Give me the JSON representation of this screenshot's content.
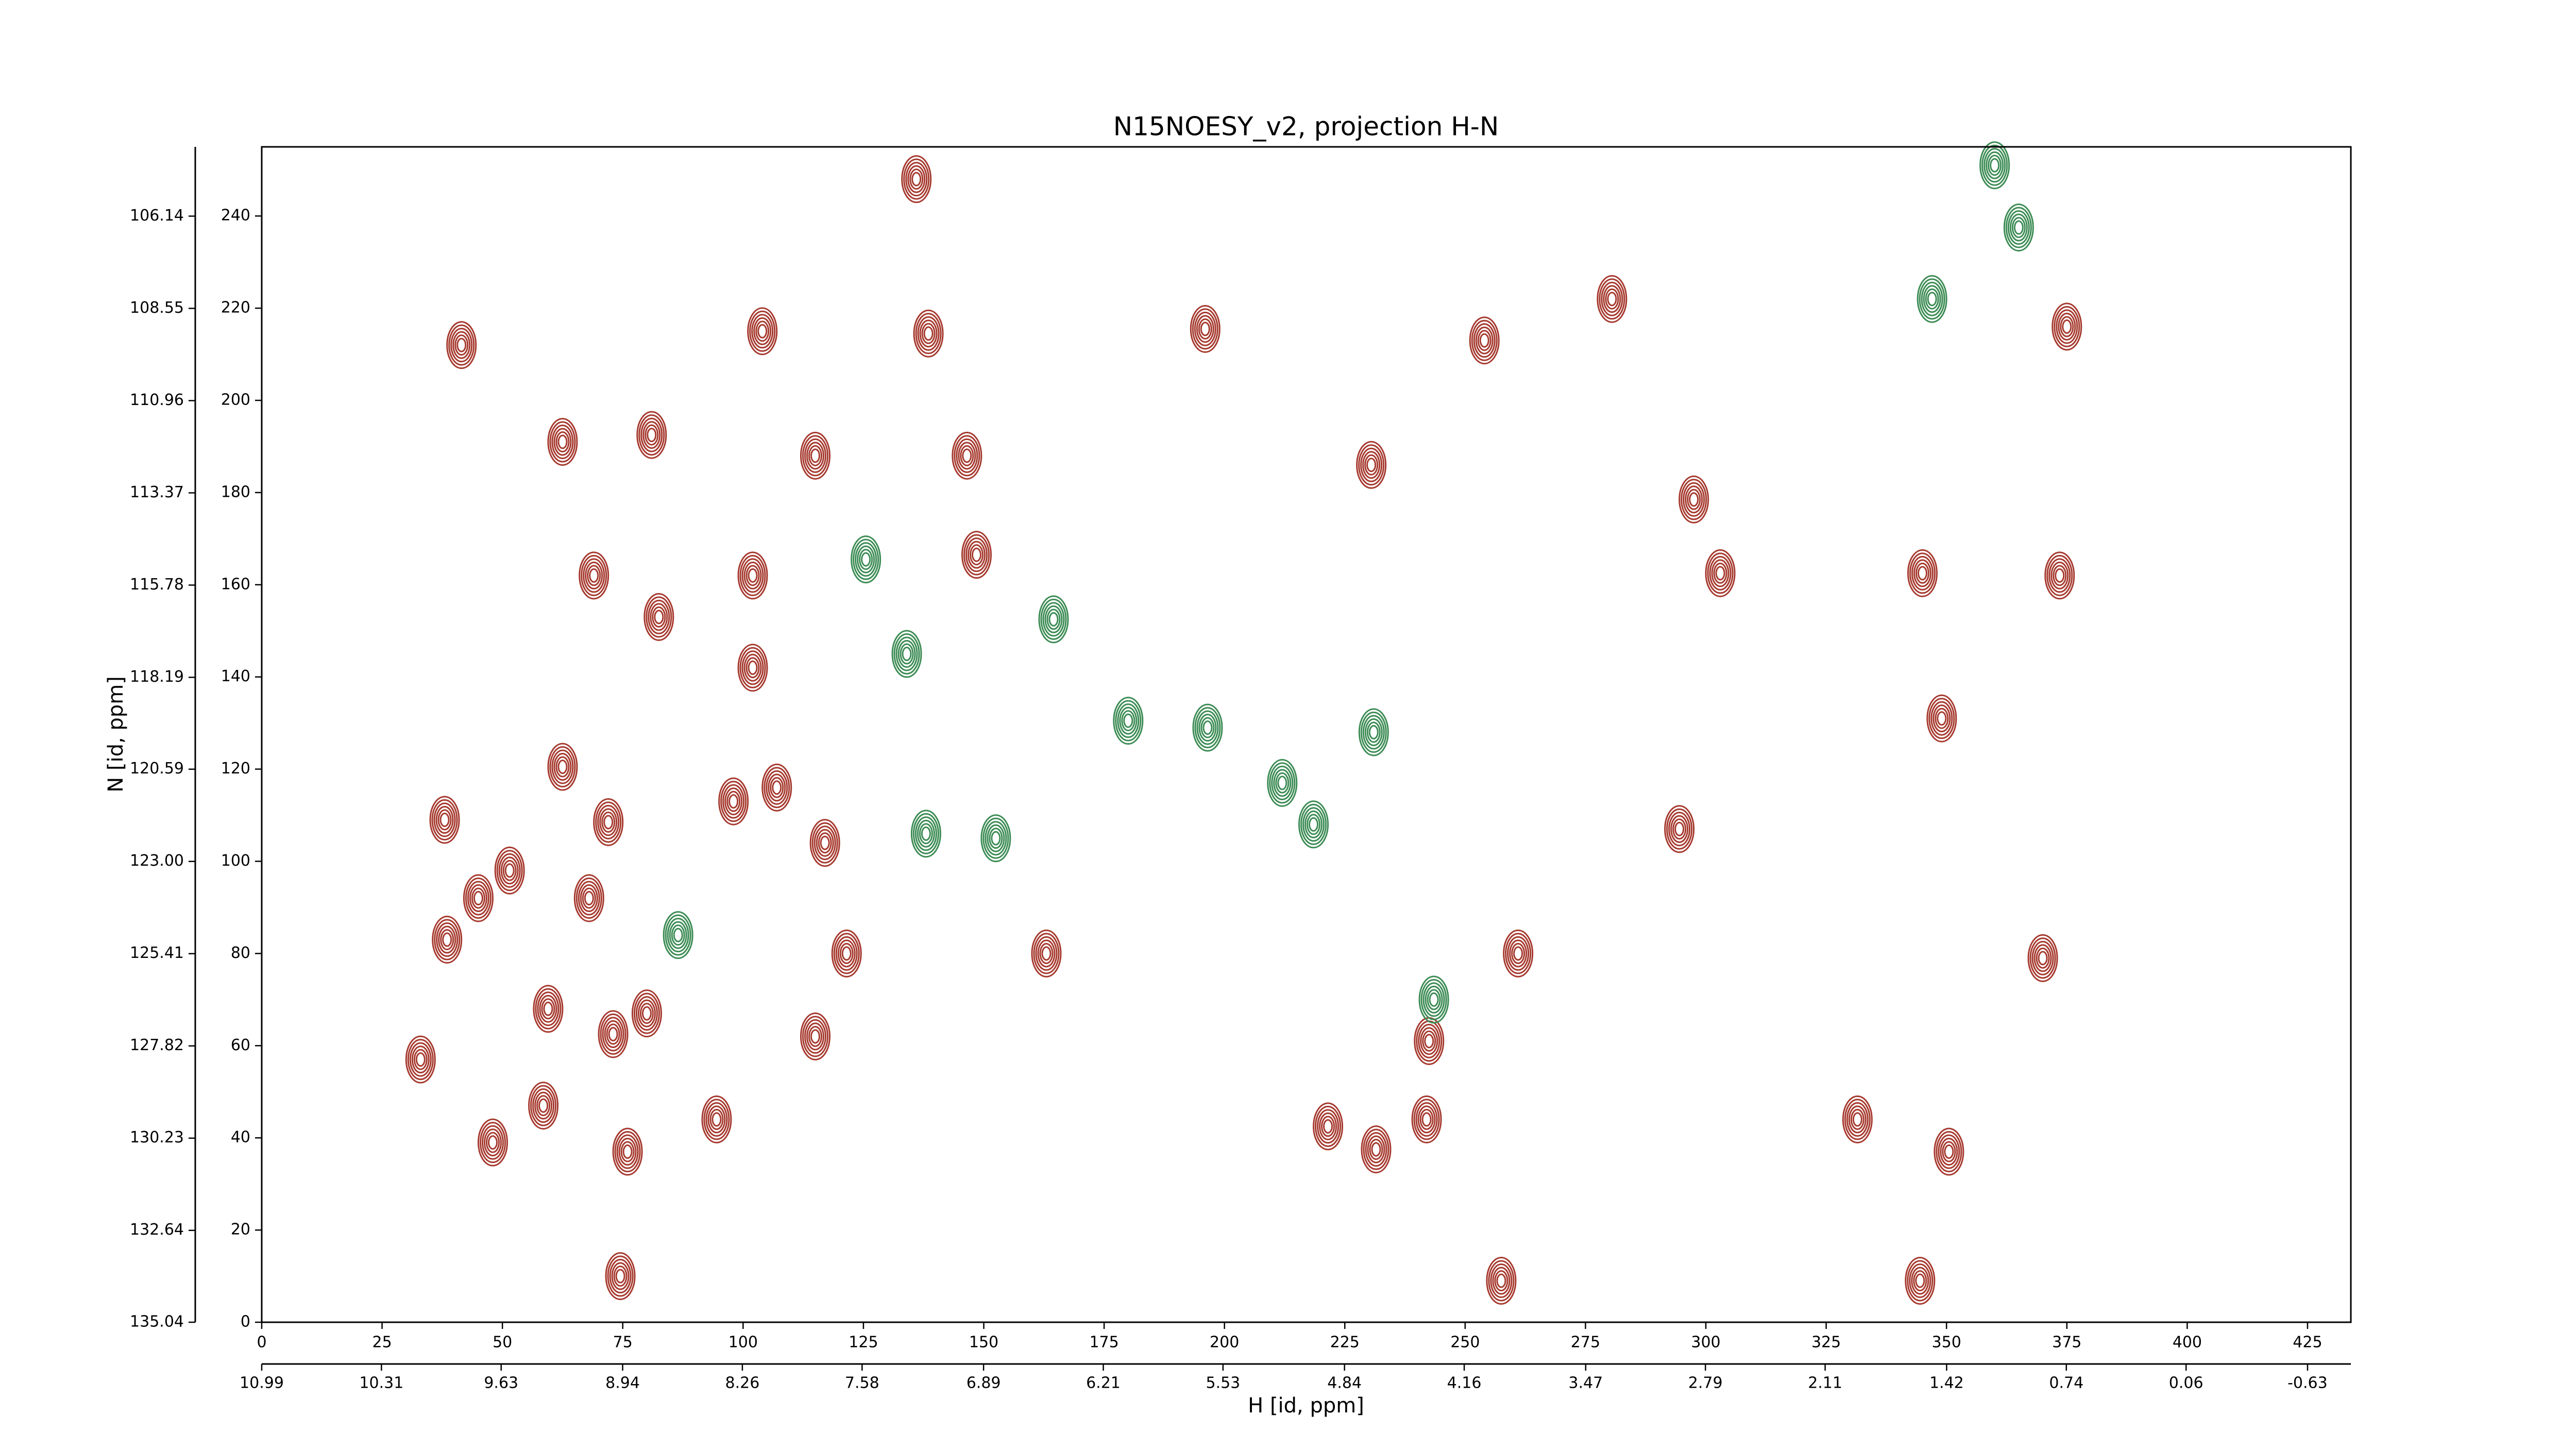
{
  "chart_data": {
    "type": "contour",
    "title": "N15NOESY_v2, projection H-N",
    "x_label": "H [id, ppm]",
    "y_label": "N [id, ppm]",
    "xlim": [
      0,
      434
    ],
    "ylim": [
      0,
      255
    ],
    "xticks": [
      0,
      25,
      50,
      75,
      100,
      125,
      150,
      175,
      200,
      225,
      250,
      275,
      300,
      325,
      350,
      375,
      400,
      425
    ],
    "yticks": [
      0,
      20,
      40,
      60,
      80,
      100,
      120,
      140,
      160,
      180,
      200,
      220,
      240
    ],
    "x2lim": [
      10.99,
      -0.876
    ],
    "x2ticks": [
      10.99,
      10.31,
      9.63,
      8.94,
      8.26,
      7.58,
      6.89,
      6.21,
      5.53,
      4.84,
      4.16,
      3.47,
      2.79,
      2.11,
      1.42,
      0.74,
      0.06,
      -0.63
    ],
    "y2lim": [
      135.04,
      104.33
    ],
    "y2ticks": [
      135.04,
      132.64,
      130.23,
      127.82,
      125.41,
      {
        "value": 123,
        "label": "123.00"
      },
      120.59,
      118.19,
      115.78,
      113.37,
      110.96,
      108.55,
      106.14
    ],
    "series": [
      {
        "color": "#a63a2f",
        "x": [
          41.5,
          33,
          48,
          38.5,
          45,
          38,
          51.5,
          59.5,
          58.5,
          62.5,
          62.5,
          69,
          72,
          68,
          73,
          80,
          81,
          82.5,
          76,
          74.5,
          94.5,
          102,
          104,
          102,
          98,
          107,
          115,
          117,
          115,
          121.5,
          138.5,
          136,
          146.5,
          148.5,
          163,
          196,
          230.5,
          221.5,
          231.5,
          242,
          242.5,
          261,
          254,
          303,
          345,
          349,
          350.5,
          344.5,
          331.5,
          375,
          373.5,
          370,
          297.5,
          280.5,
          257.5,
          294.5
        ],
        "y": [
          212,
          57,
          39,
          83,
          92,
          109,
          98,
          68,
          47,
          120.5,
          191,
          162,
          108.5,
          92,
          62.5,
          67,
          192.5,
          153,
          37,
          10,
          44,
          162,
          215,
          142,
          113,
          116,
          188,
          104,
          62,
          80,
          214.5,
          248,
          188,
          166.5,
          80,
          215.5,
          186,
          42.5,
          37.5,
          44,
          61,
          80,
          213,
          162.5,
          162.5,
          131,
          37,
          9,
          44,
          216,
          162,
          79,
          178.5,
          222,
          9,
          107
        ]
      },
      {
        "color": "#3d8c55",
        "x": [
          134,
          86.5,
          180,
          196.5,
          212,
          218.5,
          231,
          243.5,
          164.5,
          365,
          360,
          347,
          138,
          152.5,
          125.5
        ],
        "y": [
          145,
          84,
          130.5,
          129,
          117,
          108,
          128,
          70,
          152.5,
          237.5,
          251,
          222,
          106,
          105,
          165.5
        ]
      }
    ]
  }
}
